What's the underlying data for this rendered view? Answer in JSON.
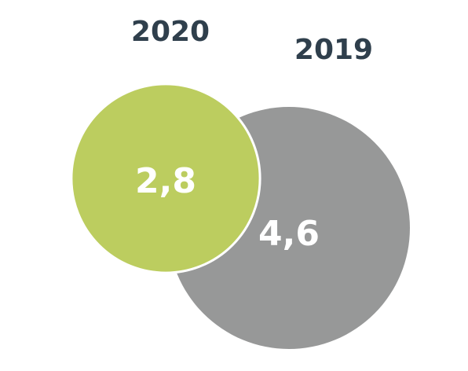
{
  "chart_data": {
    "type": "bubble",
    "title": "",
    "series": [
      {
        "name": "2019",
        "label": "2019",
        "value": 4.6,
        "value_label": "4,6",
        "color": "#979898"
      },
      {
        "name": "2020",
        "label": "2020",
        "value": 2.8,
        "value_label": "2,8",
        "color": "#bccd5f"
      }
    ],
    "label_color": "#2f3f4c",
    "value_text_color": "#ffffff",
    "outline_color": "#ffffff",
    "overlap": true,
    "legend": "none"
  }
}
